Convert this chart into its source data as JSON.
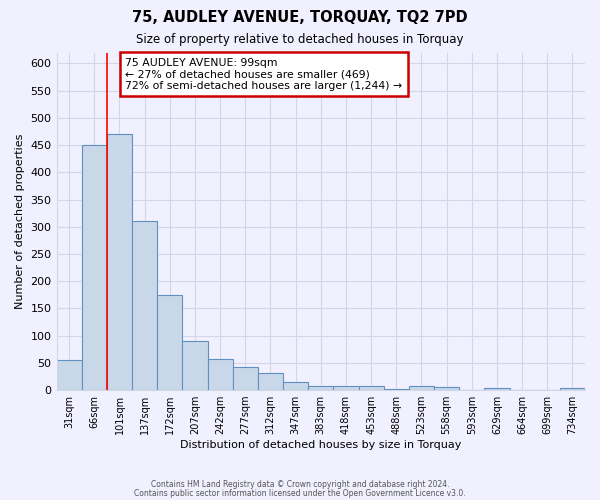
{
  "title": "75, AUDLEY AVENUE, TORQUAY, TQ2 7PD",
  "subtitle": "Size of property relative to detached houses in Torquay",
  "xlabel": "Distribution of detached houses by size in Torquay",
  "ylabel": "Number of detached properties",
  "bin_labels": [
    "31sqm",
    "66sqm",
    "101sqm",
    "137sqm",
    "172sqm",
    "207sqm",
    "242sqm",
    "277sqm",
    "312sqm",
    "347sqm",
    "383sqm",
    "418sqm",
    "453sqm",
    "488sqm",
    "523sqm",
    "558sqm",
    "593sqm",
    "629sqm",
    "664sqm",
    "699sqm",
    "734sqm"
  ],
  "bar_heights": [
    55,
    450,
    470,
    310,
    175,
    90,
    58,
    43,
    32,
    15,
    8,
    7,
    8,
    2,
    8,
    5,
    0,
    4,
    0,
    0,
    4
  ],
  "bar_color": "#c8d8e8",
  "bar_edge_color": "#6090c0",
  "red_line_index": 2,
  "ylim": [
    0,
    620
  ],
  "yticks": [
    0,
    50,
    100,
    150,
    200,
    250,
    300,
    350,
    400,
    450,
    500,
    550,
    600
  ],
  "annotation_text": "75 AUDLEY AVENUE: 99sqm\n← 27% of detached houses are smaller (469)\n72% of semi-detached houses are larger (1,244) →",
  "annotation_box_color": "#ffffff",
  "annotation_box_edge": "#cc0000",
  "footer_line1": "Contains HM Land Registry data © Crown copyright and database right 2024.",
  "footer_line2": "Contains public sector information licensed under the Open Government Licence v3.0.",
  "grid_color": "#d0d8e8",
  "background_color": "#f0f0ff",
  "plot_bg_color": "#f0f0ff"
}
